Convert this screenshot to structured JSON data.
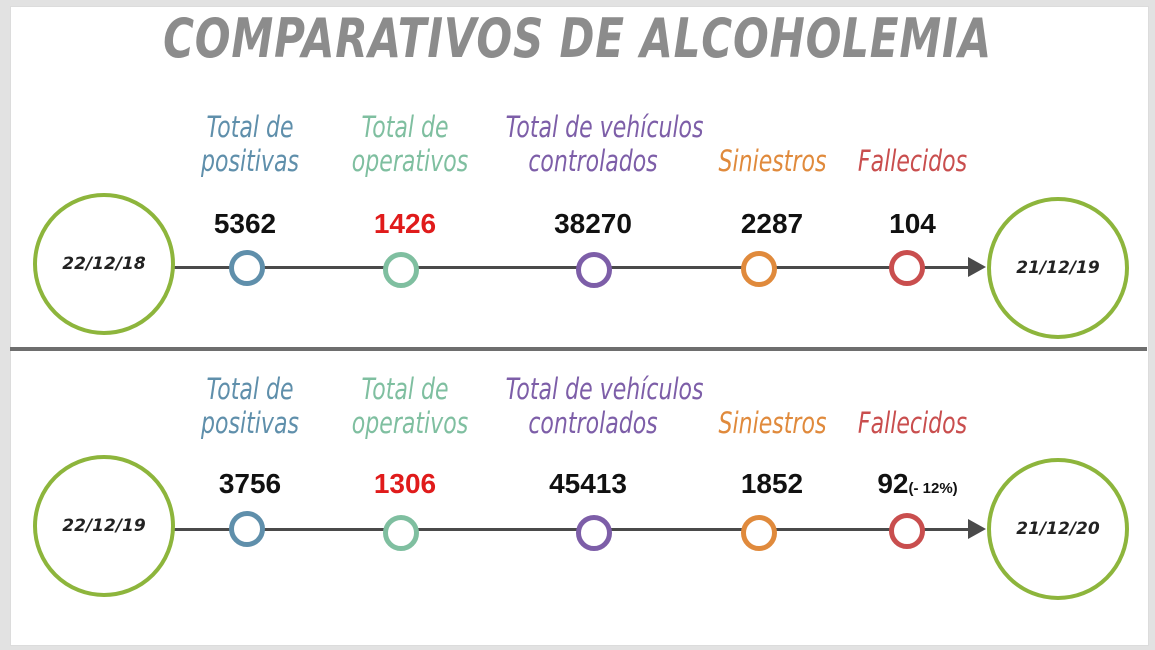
{
  "title": "COMPARATIVOS DE ALCOHOLEMIA",
  "colors": {
    "positivas": "#5f8fab",
    "operativos": "#7fbfa0",
    "vehiculos": "#7d5ea8",
    "siniestros": "#e08a3c",
    "fallecidos": "#c94e4e",
    "highlight_value": "#e01b1b",
    "date_circle": "#8db53c",
    "title": "#8c8c8c"
  },
  "labels": {
    "positivas": [
      "Total de",
      "positivas"
    ],
    "operativos": [
      "Total de",
      "operativos"
    ],
    "vehiculos": [
      "Total de vehículos",
      "controlados"
    ],
    "siniestros": "Siniestros",
    "fallecidos": "Fallecidos"
  },
  "periods": [
    {
      "start": "22/12/18",
      "end": "21/12/19",
      "values": {
        "positivas": "5362",
        "operativos": "1426",
        "vehiculos": "38270",
        "siniestros": "2287",
        "fallecidos": "104"
      },
      "fallecidos_note": ""
    },
    {
      "start": "22/12/19",
      "end": "21/12/20",
      "values": {
        "positivas": "3756",
        "operativos": "1306",
        "vehiculos": "45413",
        "siniestros": "1852",
        "fallecidos": "92"
      },
      "fallecidos_note": "(- 12%)"
    }
  ]
}
